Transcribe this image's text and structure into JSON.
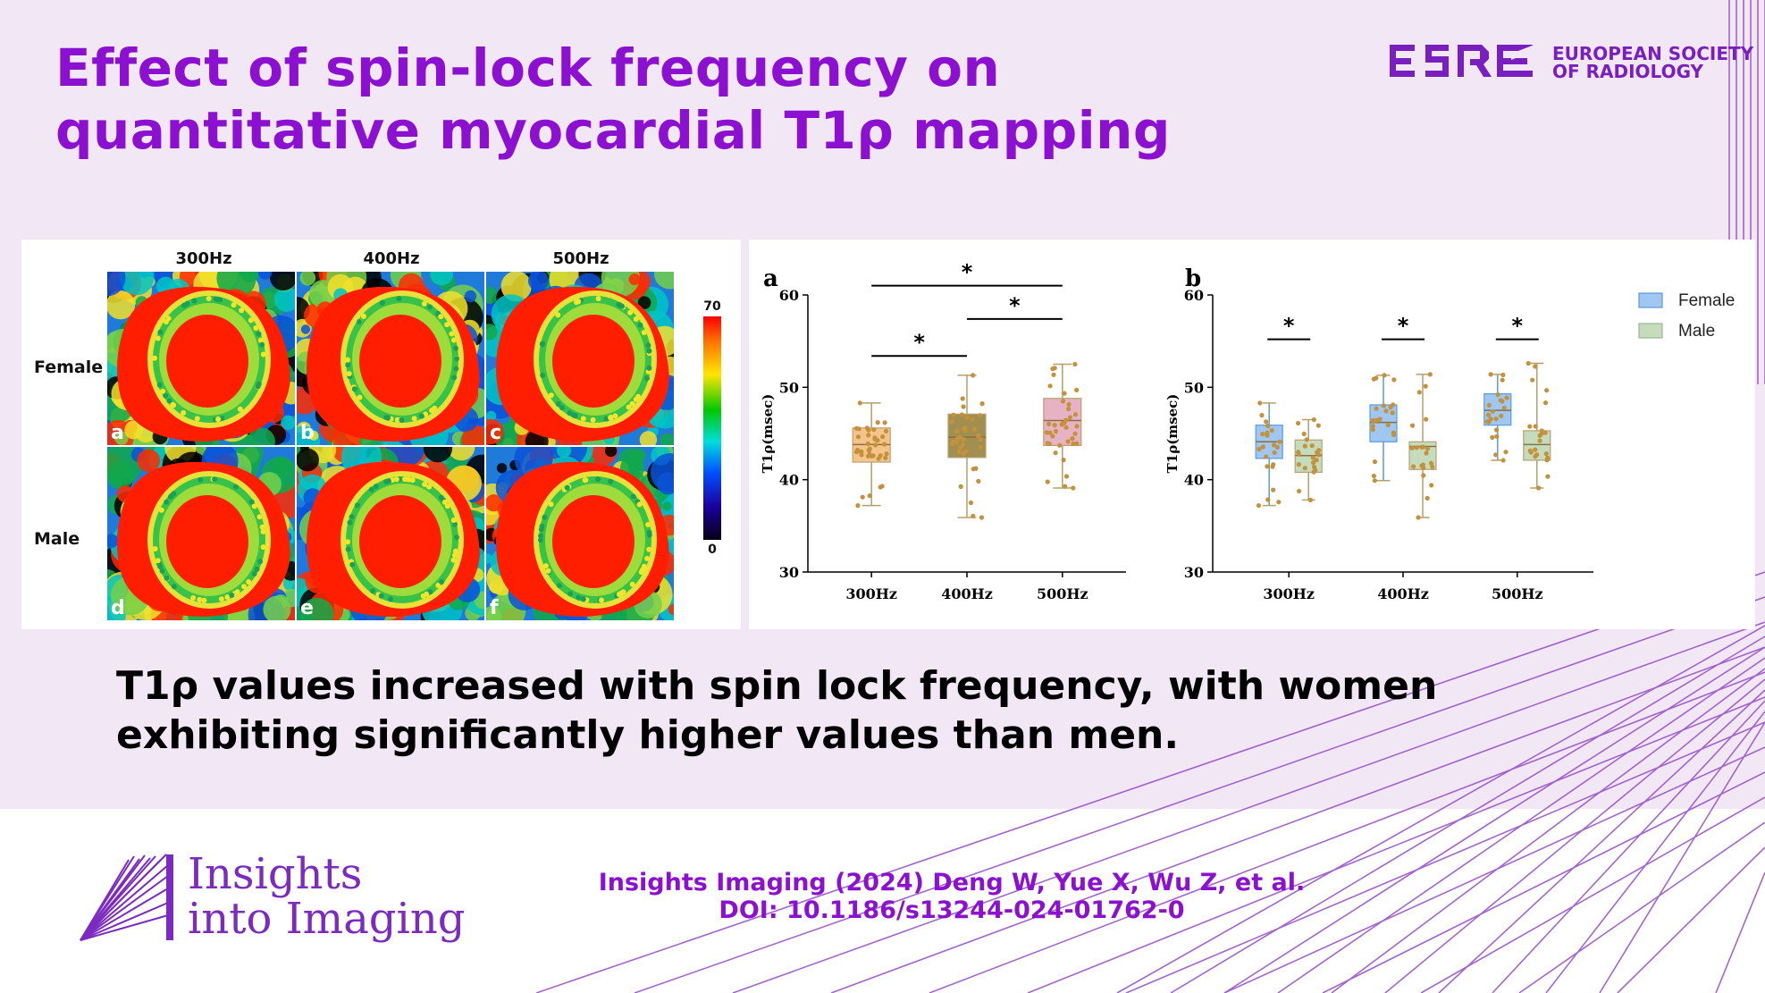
{
  "title": {
    "line1": "Effect of spin-lock frequency on",
    "line2": "quantitative myocardial T1ρ mapping"
  },
  "society": {
    "logo": "ESR",
    "line1": "EUROPEAN SOCIETY",
    "line2": "OF RADIOLOGY"
  },
  "figure": {
    "columns": [
      "300Hz",
      "400Hz",
      "500Hz"
    ],
    "rows": [
      "Female",
      "Male"
    ],
    "panel_letters": [
      "a",
      "b",
      "c",
      "d",
      "e",
      "f"
    ],
    "colorbar": {
      "max": "70",
      "min": "0"
    }
  },
  "chart_data": [
    {
      "type": "box",
      "panel": "a",
      "categories": [
        "300Hz",
        "400Hz",
        "500Hz"
      ],
      "ylabel": "T1ρ(msec)",
      "ylim": [
        30,
        60
      ],
      "yticks": [
        "30",
        "40",
        "50",
        "60"
      ],
      "series": [
        {
          "values": [
            {
              "min": 37.2,
              "q1": 41.9,
              "median": 43.8,
              "q3": 45.6,
              "max": 48.3,
              "color": "#f5c48a"
            },
            {
              "min": 35.9,
              "q1": 42.4,
              "median": 44.6,
              "q3": 47.1,
              "max": 51.3,
              "color": "#a08f4e"
            },
            {
              "min": 39.1,
              "q1": 43.7,
              "median": 46.4,
              "q3": 48.8,
              "max": 52.5,
              "color": "#e7b2c4"
            }
          ]
        }
      ],
      "significance": [
        {
          "from": "300Hz",
          "to": "400Hz",
          "label": "*",
          "y": 53.4
        },
        {
          "from": "400Hz",
          "to": "500Hz",
          "label": "*",
          "y": 57.4
        },
        {
          "from": "300Hz",
          "to": "500Hz",
          "label": "*",
          "y": 61.0
        }
      ]
    },
    {
      "type": "box",
      "panel": "b",
      "categories": [
        "300Hz",
        "400Hz",
        "500Hz"
      ],
      "ylabel": "T1ρ(msec)",
      "ylim": [
        30,
        60
      ],
      "yticks": [
        "30",
        "40",
        "50",
        "60"
      ],
      "legend": "top-right",
      "series": [
        {
          "name": "Female",
          "color": "#9fc7f2",
          "values": [
            {
              "min": 37.2,
              "q1": 42.3,
              "median": 44.1,
              "q3": 45.9,
              "max": 48.3
            },
            {
              "min": 39.9,
              "q1": 44.1,
              "median": 46.2,
              "q3": 48.1,
              "max": 51.3
            },
            {
              "min": 42.1,
              "q1": 45.9,
              "median": 47.5,
              "q3": 49.3,
              "max": 51.4
            }
          ]
        },
        {
          "name": "Male",
          "color": "#c5dcbc",
          "values": [
            {
              "min": 37.8,
              "q1": 40.8,
              "median": 42.6,
              "q3": 44.3,
              "max": 46.5
            },
            {
              "min": 35.9,
              "q1": 41.1,
              "median": 43.6,
              "q3": 44.1,
              "max": 51.4
            },
            {
              "min": 39.1,
              "q1": 42.1,
              "median": 43.8,
              "q3": 45.3,
              "max": 52.6
            }
          ]
        }
      ],
      "significance": [
        {
          "group": "300Hz",
          "label": "*"
        },
        {
          "group": "400Hz",
          "label": "*"
        },
        {
          "group": "500Hz",
          "label": "*"
        }
      ]
    }
  ],
  "summary": {
    "line1": "T1ρ values increased with spin lock frequency, with women",
    "line2": "exhibiting significantly higher values than men."
  },
  "journal": {
    "line1": "Insights",
    "line2": "into Imaging"
  },
  "citation": {
    "line1": "Insights Imaging (2024) Deng W, Yue X, Wu Z, et al.",
    "line2": "DOI: 10.1186/s13244-024-01762-0"
  },
  "colors": {
    "brand_purple": "#8c10cf",
    "background": "#f2e7f5"
  }
}
